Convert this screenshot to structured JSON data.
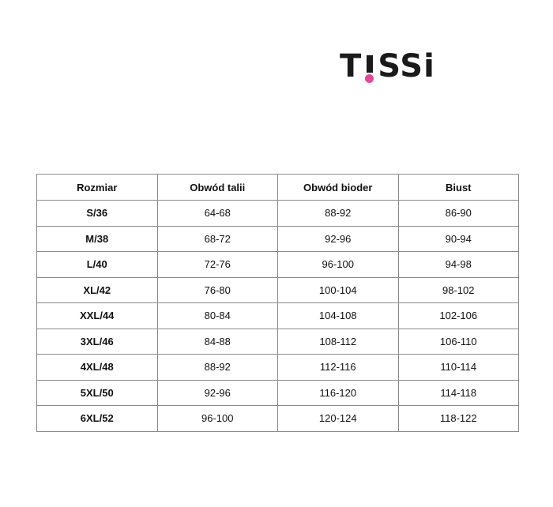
{
  "brand": {
    "logo_text": "T!SSi",
    "accent_color": "#e2489a"
  },
  "table": {
    "headers": [
      "Rozmiar",
      "Obwód talii",
      "Obwód bioder",
      "Biust"
    ],
    "rows": [
      [
        "S/36",
        "64-68",
        "88-92",
        "86-90"
      ],
      [
        "M/38",
        "68-72",
        "92-96",
        "90-94"
      ],
      [
        "L/40",
        "72-76",
        "96-100",
        "94-98"
      ],
      [
        "XL/42",
        "76-80",
        "100-104",
        "98-102"
      ],
      [
        "XXL/44",
        "80-84",
        "104-108",
        "102-106"
      ],
      [
        "3XL/46",
        "84-88",
        "108-112",
        "106-110"
      ],
      [
        "4XL/48",
        "88-92",
        "112-116",
        "110-114"
      ],
      [
        "5XL/50",
        "92-96",
        "116-120",
        "114-118"
      ],
      [
        "6XL/52",
        "96-100",
        "120-124",
        "118-122"
      ]
    ]
  }
}
